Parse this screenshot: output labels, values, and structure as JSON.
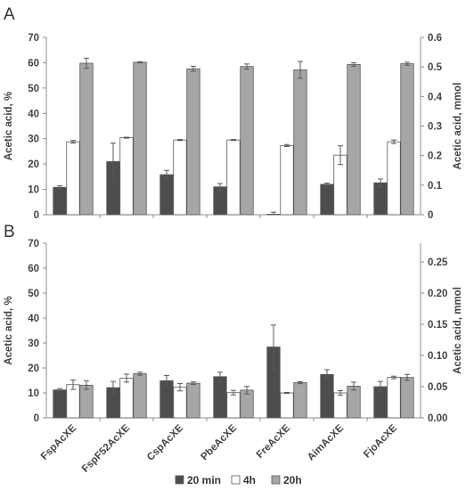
{
  "chart_data": [
    {
      "type": "bar",
      "panel_label": "A",
      "ylabel": "Acetic acid, %",
      "y2label": "Acetic acid, mmol",
      "ylim": [
        0,
        70
      ],
      "yticks": [
        0,
        10,
        20,
        30,
        40,
        50,
        60,
        70
      ],
      "y2lim": [
        0,
        0.6
      ],
      "y2ticks": [
        "0",
        "0.1",
        "0.2",
        "0.3",
        "0.4",
        "0.5",
        "0.6"
      ],
      "categories": [
        "FspAcXE",
        "FspF52AcXE",
        "CspAcXE",
        "PbeAcXE",
        "FreAcXE",
        "AimAcXE",
        "FjoAcXE"
      ],
      "series": [
        {
          "name": "20 min",
          "color": "#4d4d4d",
          "values": [
            10.8,
            21,
            15.8,
            11,
            0.2,
            12,
            12.6
          ],
          "errors": [
            0.6,
            7.3,
            1.7,
            1.3,
            0.8,
            0.5,
            1.5
          ]
        },
        {
          "name": "4h",
          "color": "#ffffff",
          "values": [
            28.8,
            30.4,
            29.5,
            29.5,
            27.3,
            23.5,
            28.8
          ],
          "errors": [
            0.5,
            0.2,
            0.2,
            0.2,
            0.4,
            3.7,
            0.7
          ]
        },
        {
          "name": "20h",
          "color": "#a6a6a6",
          "values": [
            59.8,
            60.2,
            57.6,
            58.5,
            57.2,
            59.3,
            59.6
          ],
          "errors": [
            2,
            0.2,
            1,
            1,
            3.3,
            0.7,
            0.6
          ]
        }
      ],
      "grid": false
    },
    {
      "type": "bar",
      "panel_label": "B",
      "ylabel": "Acetic acid, %",
      "y2label": "Acetic acid, mmol",
      "ylim": [
        0,
        70
      ],
      "yticks": [
        0,
        10,
        20,
        30,
        40,
        50,
        60,
        70
      ],
      "y2lim": [
        0,
        0.28
      ],
      "y2ticks": [
        "0.00",
        "0.05",
        "0.10",
        "0.15",
        "0.20",
        "0.25"
      ],
      "categories": [
        "FspAcXE",
        "FspF52AcXE",
        "CspAcXE",
        "PbeAcXE",
        "FreAcXE",
        "AimAcXE",
        "FjoAcXE"
      ],
      "series": [
        {
          "name": "20 min",
          "color": "#4d4d4d",
          "values": [
            11.2,
            12.1,
            14.9,
            16.5,
            28.4,
            17.4,
            12.5
          ],
          "errors": [
            0.5,
            2.5,
            2.1,
            1.8,
            8.8,
            1.9,
            2.1
          ]
        },
        {
          "name": "4h",
          "color": "#ffffff",
          "values": [
            13.3,
            15.9,
            12.3,
            10.1,
            10.0,
            10.0,
            16.2
          ],
          "errors": [
            1.9,
            1.6,
            1.5,
            0.9,
            0.2,
            0.9,
            0.5
          ]
        },
        {
          "name": "20h",
          "color": "#a6a6a6",
          "values": [
            13.1,
            17.7,
            13.9,
            11.1,
            14.1,
            12.7,
            16.2
          ],
          "errors": [
            1.7,
            0.6,
            0.5,
            1.5,
            0.4,
            1.6,
            1.2
          ]
        }
      ],
      "grid": false
    }
  ],
  "legend": {
    "position": "bottom",
    "items": [
      {
        "label": "20 min",
        "color": "#4d4d4d"
      },
      {
        "label": "4h",
        "color": "#ffffff"
      },
      {
        "label": "20h",
        "color": "#a6a6a6"
      }
    ]
  }
}
